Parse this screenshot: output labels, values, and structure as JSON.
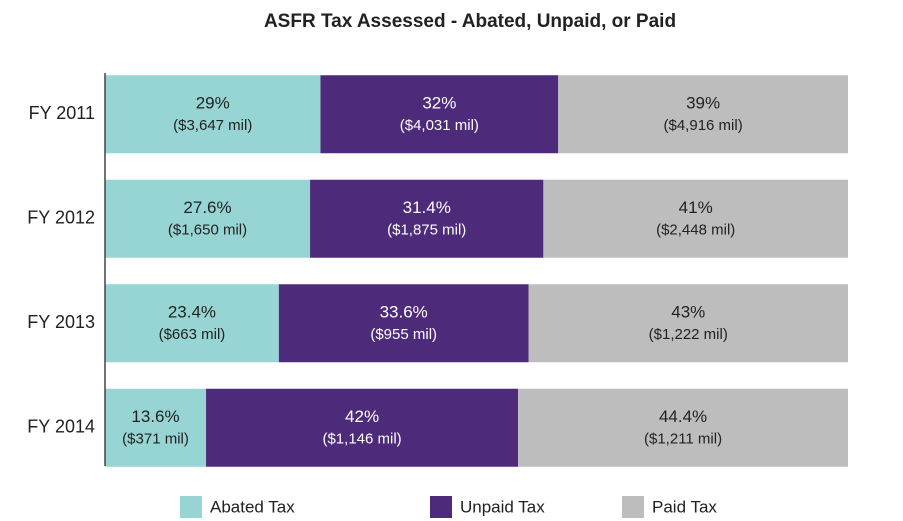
{
  "chart_data": {
    "type": "stacked_bar_horizontal",
    "title": "ASFR Tax Assessed - Abated, Unpaid, or Paid",
    "categories": [
      "FY 2011",
      "FY 2012",
      "FY 2013",
      "FY 2014"
    ],
    "xlim": [
      0,
      100
    ],
    "legend": "bottom",
    "series": [
      {
        "name": "Abated Tax",
        "color": "#96d5d3",
        "values": [
          29,
          27.6,
          23.4,
          13.6
        ],
        "value_labels": [
          "29%",
          "27.6%",
          "23.4%",
          "13.6%"
        ],
        "amount_labels": [
          "($3,647 mil)",
          "($1,650 mil)",
          "($663 mil)",
          "($371 mil)"
        ]
      },
      {
        "name": "Unpaid Tax",
        "color": "#4d2a7a",
        "values": [
          32,
          31.4,
          33.6,
          42
        ],
        "value_labels": [
          "32%",
          "31.4%",
          "33.6%",
          "42%"
        ],
        "amount_labels": [
          "($4,031 mil)",
          "($1,875 mil)",
          "($955 mil)",
          "($1,146 mil)"
        ]
      },
      {
        "name": "Paid Tax",
        "color": "#bdbdbd",
        "values": [
          39,
          41,
          43,
          44.4
        ],
        "value_labels": [
          "39%",
          "41%",
          "43%",
          "44.4%"
        ],
        "amount_labels": [
          "($4,916 mil)",
          "($2,448 mil)",
          "($1,222 mil)",
          "($1,211 mil)"
        ]
      }
    ]
  }
}
